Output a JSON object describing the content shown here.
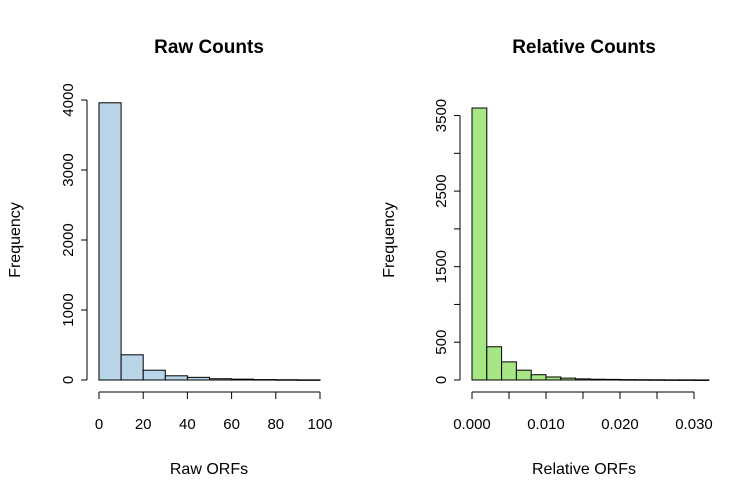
{
  "colors": {
    "raw_bar": "#b8d6e7",
    "relative_bar": "#a6e685",
    "axis": "#000000",
    "background": "#ffffff"
  },
  "chart_data": [
    {
      "type": "bar",
      "title": "Raw Counts",
      "xlabel": "Raw ORFs",
      "ylabel": "Frequency",
      "bin_edges": [
        0,
        10,
        20,
        30,
        40,
        50,
        60,
        70,
        80,
        90,
        100
      ],
      "values": [
        3960,
        360,
        140,
        60,
        38,
        18,
        12,
        6,
        4,
        2
      ],
      "xlim": [
        0,
        100
      ],
      "ylim": [
        0,
        4000
      ],
      "xticks": [
        0,
        20,
        40,
        60,
        80,
        100
      ],
      "xtick_labels": [
        "0",
        "20",
        "40",
        "60",
        "80",
        "100"
      ],
      "yticks": [
        0,
        1000,
        2000,
        3000,
        4000
      ],
      "ytick_labels": [
        "0",
        "1000",
        "2000",
        "3000",
        "4000"
      ],
      "grid": false
    },
    {
      "type": "bar",
      "title": "Relative Counts",
      "xlabel": "Relative ORFs",
      "ylabel": "Frequency",
      "bin_edges": [
        0,
        0.002,
        0.004,
        0.006,
        0.008,
        0.01,
        0.012,
        0.014,
        0.016,
        0.018,
        0.02,
        0.022,
        0.024,
        0.026,
        0.028,
        0.03,
        0.032
      ],
      "values": [
        3600,
        440,
        240,
        130,
        70,
        40,
        25,
        15,
        10,
        8,
        5,
        4,
        3,
        2,
        2,
        1
      ],
      "xlim": [
        0,
        0.03
      ],
      "ylim": [
        0,
        3600
      ],
      "xticks": [
        0,
        0.005,
        0.01,
        0.015,
        0.02,
        0.025,
        0.03
      ],
      "xtick_labels": [
        "0.000",
        "",
        "0.010",
        "",
        "0.020",
        "",
        "0.030"
      ],
      "yticks": [
        0,
        500,
        1000,
        1500,
        2000,
        2500,
        3000,
        3500
      ],
      "ytick_labels": [
        "0",
        "500",
        "",
        "1500",
        "",
        "2500",
        "",
        "3500"
      ],
      "grid": false
    }
  ]
}
